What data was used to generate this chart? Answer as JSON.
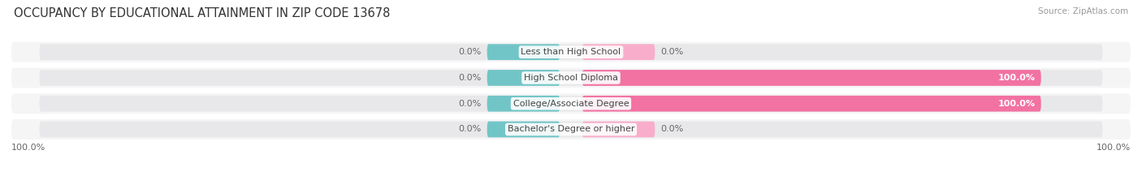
{
  "title": "OCCUPANCY BY EDUCATIONAL ATTAINMENT IN ZIP CODE 13678",
  "source": "Source: ZipAtlas.com",
  "categories": [
    "Less than High School",
    "High School Diploma",
    "College/Associate Degree",
    "Bachelor's Degree or higher"
  ],
  "owner_values": [
    0.0,
    0.0,
    0.0,
    0.0
  ],
  "renter_values": [
    0.0,
    100.0,
    100.0,
    0.0
  ],
  "owner_color": "#72C5C7",
  "renter_color": "#F272A2",
  "renter_color_light": "#F8AECB",
  "owner_color_light": "#A8D8DA",
  "bar_bg_color": "#E8E8EA",
  "row_bg_color": "#F5F5F6",
  "background_color": "#FFFFFF",
  "title_fontsize": 10.5,
  "source_fontsize": 7.5,
  "label_fontsize": 8,
  "category_fontsize": 8,
  "legend_fontsize": 8
}
